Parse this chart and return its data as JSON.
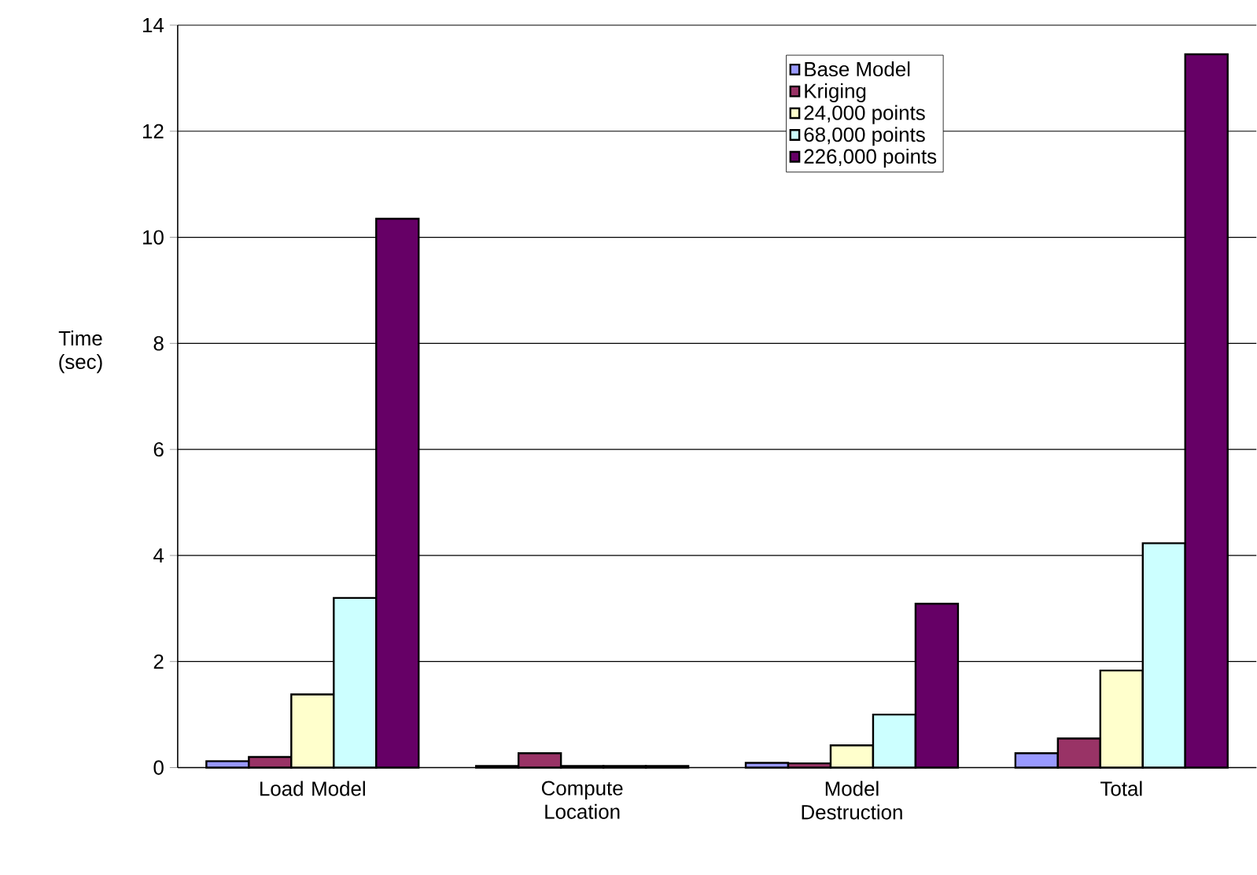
{
  "chart_data": {
    "type": "bar",
    "ylabel": "Time (sec)",
    "categories": [
      "Load Model",
      "Compute Location",
      "Model Destruction",
      "Total"
    ],
    "series": [
      {
        "name": "Base Model",
        "color": "#9999ff",
        "values": [
          0.12,
          0.03,
          0.09,
          0.27
        ]
      },
      {
        "name": "Kriging",
        "color": "#993366",
        "values": [
          0.2,
          0.27,
          0.08,
          0.55
        ]
      },
      {
        "name": "24,000 points",
        "color": "#ffffcc",
        "values": [
          1.38,
          0.03,
          0.42,
          1.83
        ]
      },
      {
        "name": "68,000 points",
        "color": "#ccffff",
        "values": [
          3.2,
          0.03,
          1.0,
          4.23
        ]
      },
      {
        "name": "226,000 points",
        "color": "#660066",
        "values": [
          10.35,
          0.03,
          3.09,
          13.45
        ]
      }
    ],
    "ylim": [
      0,
      14
    ],
    "yticks": [
      0,
      2,
      4,
      6,
      8,
      10,
      12,
      14
    ],
    "grid": "y",
    "legend": "top right"
  }
}
